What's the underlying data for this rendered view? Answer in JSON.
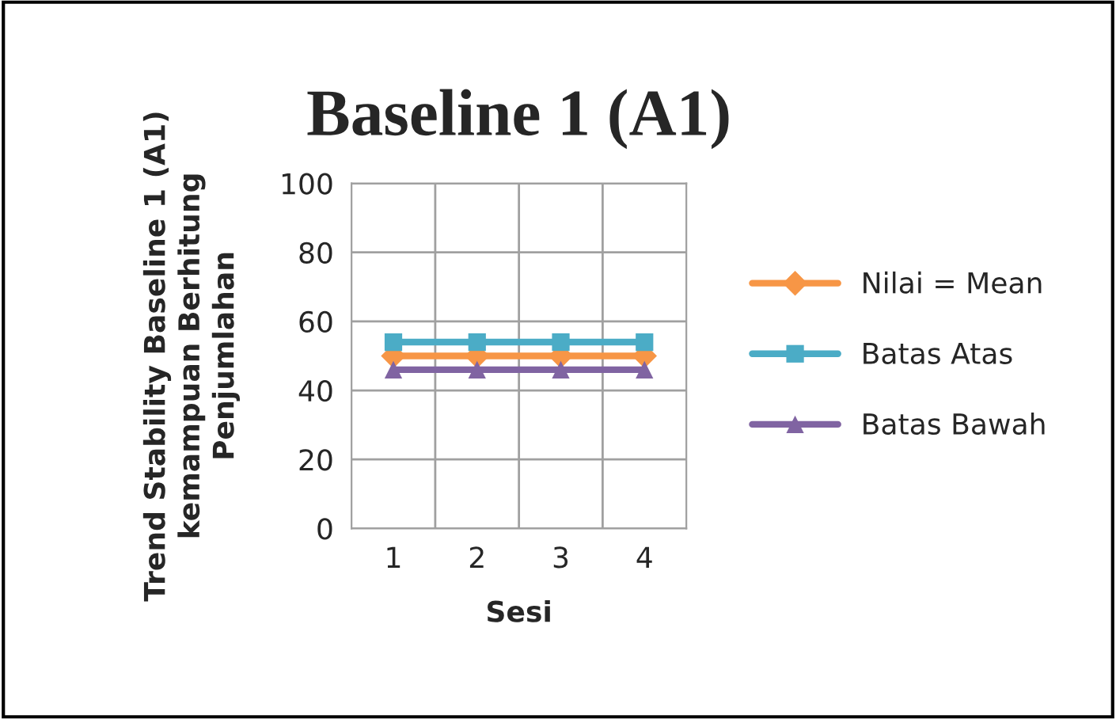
{
  "chart_data": {
    "type": "line",
    "title": "Baseline 1 (A1)",
    "xlabel": "Sesi",
    "ylabel": "Trend Stability Baseline 1 (A1)\nkemampuan Berhitung\nPenjumlahan",
    "categories": [
      "1",
      "2",
      "3",
      "4"
    ],
    "series": [
      {
        "name": "Nilai = Mean",
        "color": "#f79646",
        "values": [
          50,
          50,
          50,
          50
        ],
        "marker": "diamond"
      },
      {
        "name": "Batas Atas",
        "color": "#4bacc6",
        "values": [
          54,
          54,
          54,
          54
        ],
        "marker": "square"
      },
      {
        "name": "Batas Bawah",
        "color": "#8064a2",
        "values": [
          46,
          46,
          46,
          46
        ],
        "marker": "triangle"
      }
    ],
    "ylim": [
      0,
      100
    ],
    "yticks": [
      0,
      20,
      40,
      60,
      80,
      100
    ],
    "grid": true,
    "legend": "right",
    "line_style": "solid"
  }
}
